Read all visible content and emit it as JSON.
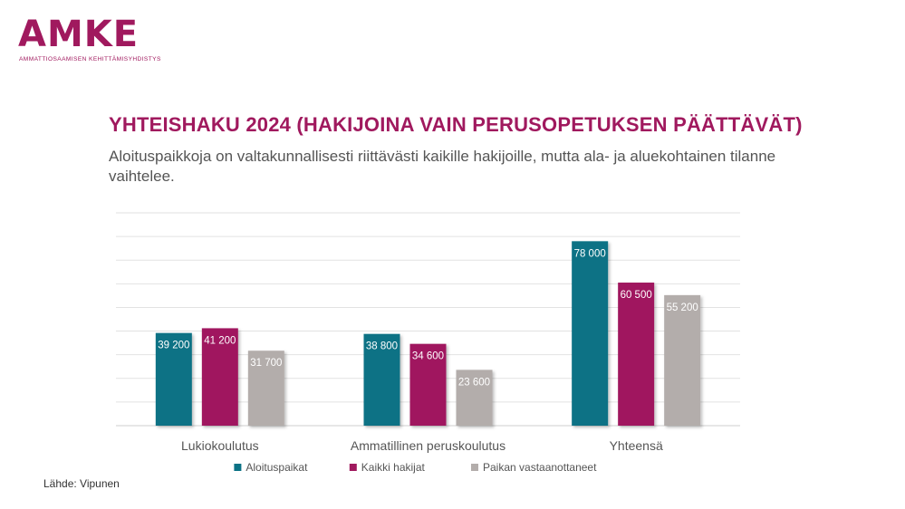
{
  "brand": {
    "logo_text": "AMKE",
    "logo_subtitle": "AMMATTIOSAAMISEN KEHITTÄMISYHDISTYS",
    "color": "#a0195e"
  },
  "slide": {
    "title": "YHTEISHAKU 2024 (HAKIJOINA VAIN PERUSOPETUKSEN PÄÄTTÄVÄT)",
    "subtitle": "Aloituspaikkoja on valtakunnallisesti riittävästi kaikille hakijoille, mutta ala- ja aluekohtainen tilanne vaihtelee.",
    "source": "Lähde: Vipunen"
  },
  "chart_data": {
    "type": "bar",
    "categories": [
      "Lukiokoulutus",
      "Ammatillinen peruskoulutus",
      "Yhteensä"
    ],
    "series": [
      {
        "name": "Aloituspaikat",
        "values": [
          39200,
          38800,
          78000
        ],
        "labels": [
          "39 200",
          "38 800",
          "78 000"
        ],
        "color": "#0b7285"
      },
      {
        "name": "Kaikki hakijat",
        "values": [
          41200,
          34600,
          60500
        ],
        "labels": [
          "41 200",
          "34 600",
          "60 500"
        ],
        "color": "#a0195e"
      },
      {
        "name": "Paikan vastaanottaneet",
        "values": [
          31700,
          23600,
          55200
        ],
        "labels": [
          "31 700",
          "23 600",
          "55 200"
        ],
        "color": "#b3adab"
      }
    ],
    "ylim": [
      0,
      90000
    ],
    "y_step": 10000,
    "grid": true,
    "y_tick_labels_shown": false,
    "legend": "bottom"
  }
}
